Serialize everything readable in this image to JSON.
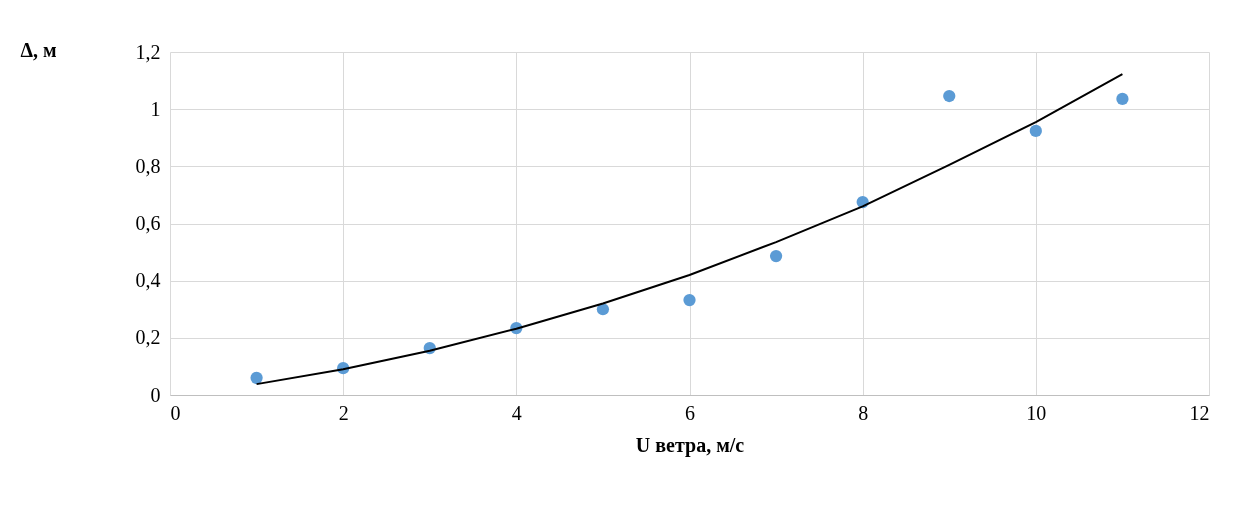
{
  "chart_data": {
    "type": "scatter",
    "xlabel": "U ветра, м/с",
    "ylabel": "Δ, м",
    "x": [
      1,
      2,
      3,
      4,
      5,
      6,
      7,
      8,
      9,
      10,
      11
    ],
    "series": [
      {
        "color": "#5b9bd5",
        "marker": "circle",
        "values": [
          0.06,
          0.094,
          0.164,
          0.234,
          0.3,
          0.332,
          0.486,
          0.675,
          1.046,
          0.924,
          1.036
        ]
      },
      {
        "type": "line",
        "color": "#000000",
        "line_style": "solid",
        "x": [
          1,
          2,
          3,
          4,
          5,
          6,
          7,
          8,
          9,
          10,
          11
        ],
        "values": [
          0.038,
          0.09,
          0.155,
          0.232,
          0.32,
          0.42,
          0.535,
          0.66,
          0.805,
          0.955,
          1.123
        ]
      }
    ],
    "xlim": [
      0,
      12
    ],
    "xticks": [
      0,
      2,
      4,
      6,
      8,
      10,
      12
    ],
    "ylim": [
      0,
      1.2
    ],
    "yticks": [
      0,
      {
        "value": 0.2,
        "label": "0,2"
      },
      {
        "value": 0.4,
        "label": "0,4"
      },
      {
        "value": 0.6,
        "label": "0,6"
      },
      {
        "value": 0.8,
        "label": "0,8"
      },
      1,
      {
        "value": 1.2,
        "label": "1,2"
      }
    ],
    "grid": true
  }
}
